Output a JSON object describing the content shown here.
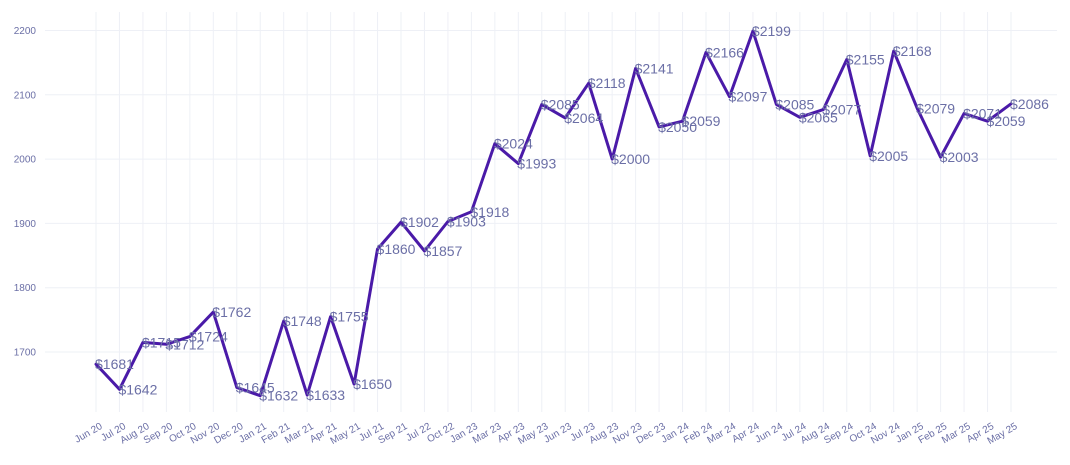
{
  "chart_data": {
    "type": "line",
    "title": "",
    "xlabel": "",
    "ylabel": "",
    "ylim": [
      1600,
      2230
    ],
    "yticks": [
      1700,
      1800,
      1900,
      2000,
      2100,
      2200
    ],
    "grid": true,
    "legend": "none",
    "line_color": "#4a1aa8",
    "label_color": "#6b6fa6",
    "value_prefix": "$",
    "x_tick_labels": [
      "Jun 20",
      "Jul 20",
      "Aug 20",
      "Sep 20",
      "Oct 20",
      "Nov 20",
      "Dec 20",
      "Jan 21",
      "Feb 21",
      "Mar 21",
      "Apr 21",
      "May 21",
      "Jul 21",
      "Sep 21",
      "Jul 22",
      "Oct 22",
      "Jan 23",
      "Mar 23",
      "Apr 23",
      "May 23",
      "Jun 23",
      "Jul 23",
      "Aug 23",
      "Nov 23",
      "Dec 23",
      "Jan 24",
      "Feb 24",
      "Mar 24",
      "Apr 24",
      "Jun 24",
      "Jul 24",
      "Aug 24",
      "Sep 24",
      "Oct 24",
      "Nov 24",
      "Jan 25",
      "Feb 25",
      "Mar 25",
      "Apr 25",
      "May 25"
    ],
    "values": [
      1681,
      1642,
      1715,
      1712,
      1724,
      1762,
      1645,
      1632,
      1748,
      1633,
      1755,
      1650,
      1860,
      1902,
      1857,
      1903,
      1918,
      2024,
      1993,
      2085,
      2064,
      2118,
      2000,
      2141,
      2050,
      2059,
      2166,
      2097,
      2199,
      2085,
      2065,
      2077,
      2155,
      2005,
      2168,
      2079,
      2003,
      2071,
      2059,
      2086
    ]
  }
}
